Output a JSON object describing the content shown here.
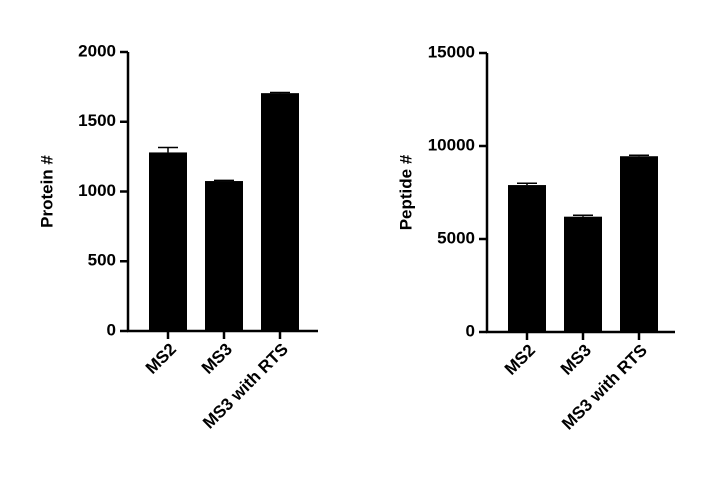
{
  "chart_data": [
    {
      "type": "bar",
      "y_label": "Protein #",
      "categories": [
        "MS2",
        "MS3",
        "MS3 with RTS"
      ],
      "values": [
        1280,
        1075,
        1705
      ],
      "errors": [
        35,
        5,
        5
      ],
      "color": "#000000",
      "ylim": [
        0,
        2000
      ],
      "yticks": [
        0,
        500,
        1000,
        1500,
        2000
      ]
    },
    {
      "type": "bar",
      "y_label": "Peptide #",
      "categories": [
        "MS2",
        "MS3",
        "MS3 with RTS"
      ],
      "values": [
        7900,
        6200,
        9450
      ],
      "errors": [
        100,
        80,
        50
      ],
      "color": "#000000",
      "ylim": [
        0,
        15000
      ],
      "yticks": [
        0,
        5000,
        10000,
        15000
      ]
    }
  ]
}
